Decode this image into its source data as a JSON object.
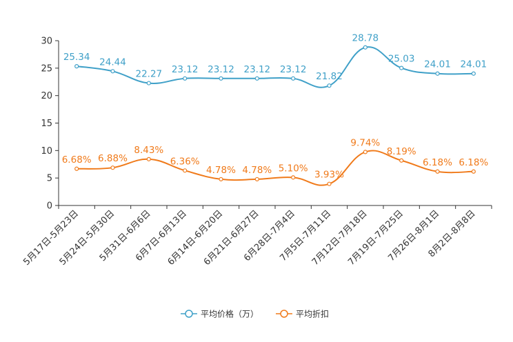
{
  "chart_data": {
    "type": "line",
    "title": "",
    "xlabel": "",
    "ylabel": "",
    "ylim": [
      0,
      30
    ],
    "yticks": [
      0,
      5,
      10,
      15,
      20,
      25,
      30
    ],
    "grid": false,
    "legend_position": "bottom-center",
    "categories": [
      "5月17日-5月23日",
      "5月24日-5月30日",
      "5月31日-6月6日",
      "6月7日-6月13日",
      "6月14日-6月20日",
      "6月21日-6月27日",
      "6月28日-7月4日",
      "7月5日-7月11日",
      "7月12日-7月18日",
      "7月19日-7月25日",
      "7月26日-8月1日",
      "8月2日-8月8日"
    ],
    "series": [
      {
        "name": "平均价格（万）",
        "color": "#3fa0c8",
        "values": [
          25.34,
          24.44,
          22.27,
          23.12,
          23.12,
          23.12,
          23.12,
          21.82,
          28.78,
          25.03,
          24.01,
          24.01
        ],
        "labels": [
          "25.34",
          "24.44",
          "22.27",
          "23.12",
          "23.12",
          "23.12",
          "23.12",
          "21.82",
          "28.78",
          "25.03",
          "24.01",
          "24.01"
        ]
      },
      {
        "name": "平均折扣",
        "color": "#f07a1a",
        "values": [
          6.68,
          6.88,
          8.43,
          6.36,
          4.78,
          4.78,
          5.1,
          3.93,
          9.74,
          8.19,
          6.18,
          6.18
        ],
        "labels": [
          "6.68%",
          "6.88%",
          "8.43%",
          "6.36%",
          "4.78%",
          "4.78%",
          "5.10%",
          "3.93%",
          "9.74%",
          "8.19%",
          "6.18%",
          "6.18%"
        ]
      }
    ]
  }
}
